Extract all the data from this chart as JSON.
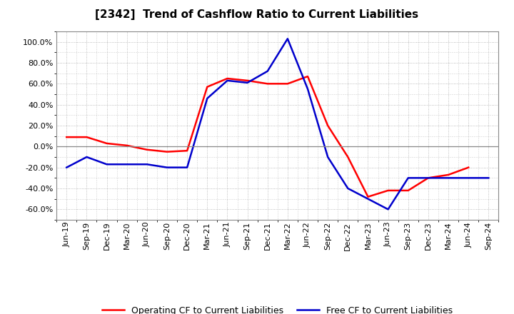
{
  "title": "[2342]  Trend of Cashflow Ratio to Current Liabilities",
  "x_labels": [
    "Jun-19",
    "Sep-19",
    "Dec-19",
    "Mar-20",
    "Jun-20",
    "Sep-20",
    "Dec-20",
    "Mar-21",
    "Jun-21",
    "Sep-21",
    "Dec-21",
    "Mar-22",
    "Jun-22",
    "Sep-22",
    "Dec-22",
    "Mar-23",
    "Jun-23",
    "Sep-23",
    "Dec-23",
    "Mar-24",
    "Jun-24",
    "Sep-24"
  ],
  "operating_cf": [
    0.09,
    0.09,
    0.03,
    0.01,
    -0.03,
    -0.05,
    -0.04,
    0.57,
    0.65,
    0.63,
    0.6,
    0.6,
    0.67,
    0.2,
    -0.1,
    -0.48,
    -0.42,
    -0.42,
    -0.3,
    -0.27,
    -0.2,
    null
  ],
  "free_cf": [
    -0.2,
    -0.1,
    -0.17,
    -0.17,
    -0.17,
    -0.2,
    -0.2,
    0.46,
    0.63,
    0.61,
    0.72,
    1.03,
    0.55,
    -0.1,
    -0.4,
    -0.5,
    -0.6,
    -0.3,
    -0.3,
    -0.3,
    -0.3,
    -0.3
  ],
  "ylim": [
    -0.7,
    1.1
  ],
  "yticks": [
    -0.6,
    -0.4,
    -0.2,
    0.0,
    0.2,
    0.4,
    0.6,
    0.8,
    1.0
  ],
  "operating_color": "#ff0000",
  "free_color": "#0000cc",
  "background_color": "#ffffff",
  "grid_color": "#aaaaaa",
  "zero_line_color": "#888888",
  "legend_operating": "Operating CF to Current Liabilities",
  "legend_free": "Free CF to Current Liabilities",
  "title_fontsize": 11,
  "tick_fontsize": 8,
  "legend_fontsize": 9
}
